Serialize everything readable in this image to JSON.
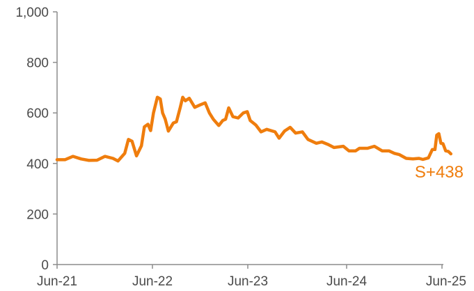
{
  "chart_data": {
    "type": "line",
    "title": "",
    "xlabel": "",
    "ylabel": "",
    "ylim": [
      0,
      1000
    ],
    "grid": false,
    "legend": "none",
    "x_ticks": [
      "Jun-21",
      "Jun-22",
      "Jun-23",
      "Jun-24",
      "Jun-25"
    ],
    "y_ticks": [
      "0",
      "200",
      "400",
      "600",
      "800",
      "1,000"
    ],
    "y_tick_values": [
      0,
      200,
      400,
      600,
      800,
      1000
    ],
    "end_label": "S+438",
    "series": [
      {
        "color": "#ef7d0d",
        "points": [
          [
            "2021-06-01",
            415
          ],
          [
            "2021-07-01",
            415
          ],
          [
            "2021-08-01",
            428
          ],
          [
            "2021-09-01",
            418
          ],
          [
            "2021-10-01",
            412
          ],
          [
            "2021-11-01",
            413
          ],
          [
            "2021-12-01",
            428
          ],
          [
            "2022-01-01",
            420
          ],
          [
            "2022-01-20",
            410
          ],
          [
            "2022-02-15",
            440
          ],
          [
            "2022-03-01",
            495
          ],
          [
            "2022-03-15",
            488
          ],
          [
            "2022-04-01",
            430
          ],
          [
            "2022-04-20",
            470
          ],
          [
            "2022-05-01",
            545
          ],
          [
            "2022-05-15",
            555
          ],
          [
            "2022-05-25",
            530
          ],
          [
            "2022-06-05",
            600
          ],
          [
            "2022-06-20",
            662
          ],
          [
            "2022-07-01",
            655
          ],
          [
            "2022-07-10",
            600
          ],
          [
            "2022-07-20",
            575
          ],
          [
            "2022-08-01",
            528
          ],
          [
            "2022-08-20",
            560
          ],
          [
            "2022-09-01",
            565
          ],
          [
            "2022-09-15",
            620
          ],
          [
            "2022-09-25",
            662
          ],
          [
            "2022-10-05",
            648
          ],
          [
            "2022-10-20",
            658
          ],
          [
            "2022-11-10",
            622
          ],
          [
            "2022-12-01",
            632
          ],
          [
            "2022-12-20",
            640
          ],
          [
            "2023-01-05",
            600
          ],
          [
            "2023-01-20",
            575
          ],
          [
            "2023-02-10",
            550
          ],
          [
            "2023-02-25",
            570
          ],
          [
            "2023-03-08",
            575
          ],
          [
            "2023-03-20",
            620
          ],
          [
            "2023-04-05",
            585
          ],
          [
            "2023-04-25",
            580
          ],
          [
            "2023-05-15",
            600
          ],
          [
            "2023-05-30",
            605
          ],
          [
            "2023-06-10",
            570
          ],
          [
            "2023-07-01",
            552
          ],
          [
            "2023-07-20",
            525
          ],
          [
            "2023-08-10",
            535
          ],
          [
            "2023-09-10",
            525
          ],
          [
            "2023-09-25",
            500
          ],
          [
            "2023-10-15",
            528
          ],
          [
            "2023-11-05",
            543
          ],
          [
            "2023-11-25",
            520
          ],
          [
            "2023-12-20",
            525
          ],
          [
            "2024-01-10",
            495
          ],
          [
            "2024-02-10",
            480
          ],
          [
            "2024-03-01",
            485
          ],
          [
            "2024-03-25",
            475
          ],
          [
            "2024-04-15",
            463
          ],
          [
            "2024-05-20",
            468
          ],
          [
            "2024-06-10",
            450
          ],
          [
            "2024-07-05",
            450
          ],
          [
            "2024-07-20",
            460
          ],
          [
            "2024-08-20",
            460
          ],
          [
            "2024-09-15",
            468
          ],
          [
            "2024-10-15",
            450
          ],
          [
            "2024-11-10",
            450
          ],
          [
            "2024-12-01",
            440
          ],
          [
            "2024-12-20",
            435
          ],
          [
            "2025-01-15",
            420
          ],
          [
            "2025-02-10",
            418
          ],
          [
            "2025-03-05",
            420
          ],
          [
            "2025-03-20",
            416
          ],
          [
            "2025-04-10",
            422
          ],
          [
            "2025-04-25",
            455
          ],
          [
            "2025-05-05",
            455
          ],
          [
            "2025-05-12",
            512
          ],
          [
            "2025-05-20",
            518
          ],
          [
            "2025-05-28",
            480
          ],
          [
            "2025-06-05",
            478
          ],
          [
            "2025-06-15",
            450
          ],
          [
            "2025-06-25",
            448
          ],
          [
            "2025-07-05",
            438
          ]
        ]
      }
    ]
  }
}
